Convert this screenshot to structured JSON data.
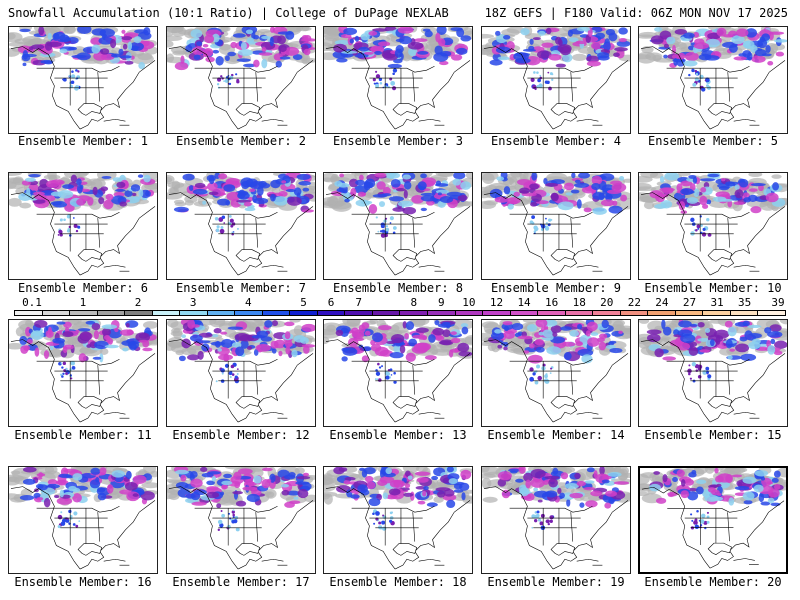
{
  "header": {
    "left_title": "Snowfall Accumulation (10:1 Ratio) | College of DuPage NEXLAB",
    "right_title": "18Z GEFS | F180 Valid: 06Z MON NOV 17 2025"
  },
  "legend": {
    "labels": [
      "0.1",
      "1",
      "2",
      "3",
      "4",
      "5",
      "6",
      "7",
      "8",
      "9",
      "10",
      "12",
      "14",
      "16",
      "18",
      "20",
      "22",
      "24",
      "27",
      "31",
      "35",
      "39"
    ],
    "colors": [
      "#f0f0f0",
      "#d8d8d8",
      "#bcbcbc",
      "#a0a0a0",
      "#808080",
      "#c8f0f8",
      "#90d8f0",
      "#60b0f0",
      "#3c88f0",
      "#2050e8",
      "#1020d0",
      "#3010c0",
      "#5010b0",
      "#6818a8",
      "#8020b0",
      "#9830b8",
      "#b038c0",
      "#c040c8",
      "#d050c8",
      "#e060b8",
      "#e870a8",
      "#f08098",
      "#f09080",
      "#f0a070",
      "#f8b880",
      "#fcd0a0",
      "#fce0c0",
      "#fff0e0"
    ]
  },
  "colors": {
    "land": "#ffffff",
    "grey": "#b0b0b0",
    "light_blue": "#8cd0f0",
    "blue": "#2848e8",
    "purple": "#7820b0",
    "magenta": "#d040c8",
    "outline": "#000000"
  },
  "panels": [
    {
      "caption": "Ensemble Member: 1"
    },
    {
      "caption": "Ensemble Member: 2"
    },
    {
      "caption": "Ensemble Member: 3"
    },
    {
      "caption": "Ensemble Member: 4"
    },
    {
      "caption": "Ensemble Member: 5"
    },
    {
      "caption": "Ensemble Member: 6"
    },
    {
      "caption": "Ensemble Member: 7"
    },
    {
      "caption": "Ensemble Member: 8"
    },
    {
      "caption": "Ensemble Member: 9"
    },
    {
      "caption": "Ensemble Member: 10"
    },
    {
      "caption": "Ensemble Member: 11"
    },
    {
      "caption": "Ensemble Member: 12"
    },
    {
      "caption": "Ensemble Member: 13"
    },
    {
      "caption": "Ensemble Member: 14"
    },
    {
      "caption": "Ensemble Member: 15"
    },
    {
      "caption": "Ensemble Member: 16"
    },
    {
      "caption": "Ensemble Member: 17"
    },
    {
      "caption": "Ensemble Member: 18"
    },
    {
      "caption": "Ensemble Member: 19"
    },
    {
      "caption": "Ensemble Member: 20"
    }
  ]
}
